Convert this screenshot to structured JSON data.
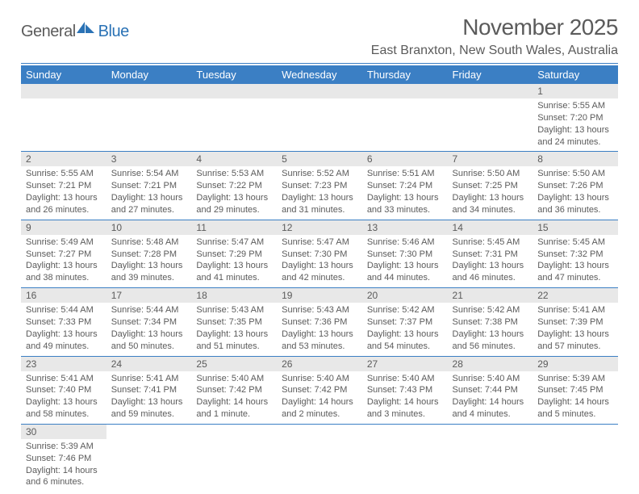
{
  "colors": {
    "accent": "#3b7fc4",
    "text_gray": "#5b5b5b",
    "daynum_bg": "#e8e8e8",
    "page_bg": "#ffffff"
  },
  "logo": {
    "text_general": "General",
    "text_blue": "Blue",
    "icon_fill": "#2a72b5"
  },
  "title": "November 2025",
  "location": "East Branxton, New South Wales, Australia",
  "day_headers": [
    "Sunday",
    "Monday",
    "Tuesday",
    "Wednesday",
    "Thursday",
    "Friday",
    "Saturday"
  ],
  "weeks": [
    [
      null,
      null,
      null,
      null,
      null,
      null,
      {
        "n": "1",
        "sunrise": "Sunrise: 5:55 AM",
        "sunset": "Sunset: 7:20 PM",
        "daylight": "Daylight: 13 hours and 24 minutes."
      }
    ],
    [
      {
        "n": "2",
        "sunrise": "Sunrise: 5:55 AM",
        "sunset": "Sunset: 7:21 PM",
        "daylight": "Daylight: 13 hours and 26 minutes."
      },
      {
        "n": "3",
        "sunrise": "Sunrise: 5:54 AM",
        "sunset": "Sunset: 7:21 PM",
        "daylight": "Daylight: 13 hours and 27 minutes."
      },
      {
        "n": "4",
        "sunrise": "Sunrise: 5:53 AM",
        "sunset": "Sunset: 7:22 PM",
        "daylight": "Daylight: 13 hours and 29 minutes."
      },
      {
        "n": "5",
        "sunrise": "Sunrise: 5:52 AM",
        "sunset": "Sunset: 7:23 PM",
        "daylight": "Daylight: 13 hours and 31 minutes."
      },
      {
        "n": "6",
        "sunrise": "Sunrise: 5:51 AM",
        "sunset": "Sunset: 7:24 PM",
        "daylight": "Daylight: 13 hours and 33 minutes."
      },
      {
        "n": "7",
        "sunrise": "Sunrise: 5:50 AM",
        "sunset": "Sunset: 7:25 PM",
        "daylight": "Daylight: 13 hours and 34 minutes."
      },
      {
        "n": "8",
        "sunrise": "Sunrise: 5:50 AM",
        "sunset": "Sunset: 7:26 PM",
        "daylight": "Daylight: 13 hours and 36 minutes."
      }
    ],
    [
      {
        "n": "9",
        "sunrise": "Sunrise: 5:49 AM",
        "sunset": "Sunset: 7:27 PM",
        "daylight": "Daylight: 13 hours and 38 minutes."
      },
      {
        "n": "10",
        "sunrise": "Sunrise: 5:48 AM",
        "sunset": "Sunset: 7:28 PM",
        "daylight": "Daylight: 13 hours and 39 minutes."
      },
      {
        "n": "11",
        "sunrise": "Sunrise: 5:47 AM",
        "sunset": "Sunset: 7:29 PM",
        "daylight": "Daylight: 13 hours and 41 minutes."
      },
      {
        "n": "12",
        "sunrise": "Sunrise: 5:47 AM",
        "sunset": "Sunset: 7:30 PM",
        "daylight": "Daylight: 13 hours and 42 minutes."
      },
      {
        "n": "13",
        "sunrise": "Sunrise: 5:46 AM",
        "sunset": "Sunset: 7:30 PM",
        "daylight": "Daylight: 13 hours and 44 minutes."
      },
      {
        "n": "14",
        "sunrise": "Sunrise: 5:45 AM",
        "sunset": "Sunset: 7:31 PM",
        "daylight": "Daylight: 13 hours and 46 minutes."
      },
      {
        "n": "15",
        "sunrise": "Sunrise: 5:45 AM",
        "sunset": "Sunset: 7:32 PM",
        "daylight": "Daylight: 13 hours and 47 minutes."
      }
    ],
    [
      {
        "n": "16",
        "sunrise": "Sunrise: 5:44 AM",
        "sunset": "Sunset: 7:33 PM",
        "daylight": "Daylight: 13 hours and 49 minutes."
      },
      {
        "n": "17",
        "sunrise": "Sunrise: 5:44 AM",
        "sunset": "Sunset: 7:34 PM",
        "daylight": "Daylight: 13 hours and 50 minutes."
      },
      {
        "n": "18",
        "sunrise": "Sunrise: 5:43 AM",
        "sunset": "Sunset: 7:35 PM",
        "daylight": "Daylight: 13 hours and 51 minutes."
      },
      {
        "n": "19",
        "sunrise": "Sunrise: 5:43 AM",
        "sunset": "Sunset: 7:36 PM",
        "daylight": "Daylight: 13 hours and 53 minutes."
      },
      {
        "n": "20",
        "sunrise": "Sunrise: 5:42 AM",
        "sunset": "Sunset: 7:37 PM",
        "daylight": "Daylight: 13 hours and 54 minutes."
      },
      {
        "n": "21",
        "sunrise": "Sunrise: 5:42 AM",
        "sunset": "Sunset: 7:38 PM",
        "daylight": "Daylight: 13 hours and 56 minutes."
      },
      {
        "n": "22",
        "sunrise": "Sunrise: 5:41 AM",
        "sunset": "Sunset: 7:39 PM",
        "daylight": "Daylight: 13 hours and 57 minutes."
      }
    ],
    [
      {
        "n": "23",
        "sunrise": "Sunrise: 5:41 AM",
        "sunset": "Sunset: 7:40 PM",
        "daylight": "Daylight: 13 hours and 58 minutes."
      },
      {
        "n": "24",
        "sunrise": "Sunrise: 5:41 AM",
        "sunset": "Sunset: 7:41 PM",
        "daylight": "Daylight: 13 hours and 59 minutes."
      },
      {
        "n": "25",
        "sunrise": "Sunrise: 5:40 AM",
        "sunset": "Sunset: 7:42 PM",
        "daylight": "Daylight: 14 hours and 1 minute."
      },
      {
        "n": "26",
        "sunrise": "Sunrise: 5:40 AM",
        "sunset": "Sunset: 7:42 PM",
        "daylight": "Daylight: 14 hours and 2 minutes."
      },
      {
        "n": "27",
        "sunrise": "Sunrise: 5:40 AM",
        "sunset": "Sunset: 7:43 PM",
        "daylight": "Daylight: 14 hours and 3 minutes."
      },
      {
        "n": "28",
        "sunrise": "Sunrise: 5:40 AM",
        "sunset": "Sunset: 7:44 PM",
        "daylight": "Daylight: 14 hours and 4 minutes."
      },
      {
        "n": "29",
        "sunrise": "Sunrise: 5:39 AM",
        "sunset": "Sunset: 7:45 PM",
        "daylight": "Daylight: 14 hours and 5 minutes."
      }
    ],
    [
      {
        "n": "30",
        "sunrise": "Sunrise: 5:39 AM",
        "sunset": "Sunset: 7:46 PM",
        "daylight": "Daylight: 14 hours and 6 minutes."
      },
      null,
      null,
      null,
      null,
      null,
      null
    ]
  ],
  "fonts": {
    "title_size_pt": 28,
    "location_size_pt": 16,
    "header_size_pt": 13,
    "daynum_size_pt": 12,
    "body_size_pt": 11
  }
}
